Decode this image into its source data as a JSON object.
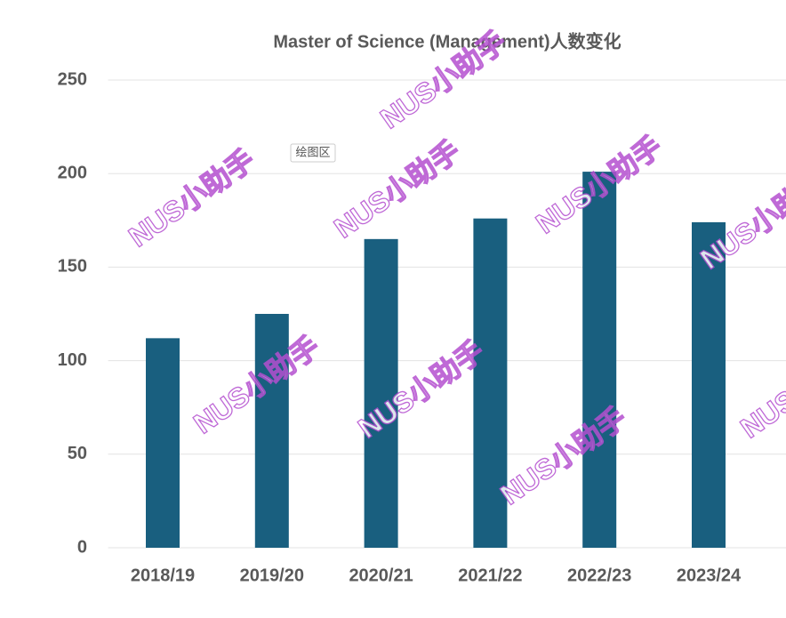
{
  "chart_data": {
    "type": "bar",
    "title": "Master of Science (Management)人数变化",
    "categories": [
      "2018/19",
      "2019/20",
      "2020/21",
      "2021/22",
      "2022/23",
      "2023/24"
    ],
    "values": [
      112,
      125,
      165,
      176,
      201,
      174
    ],
    "color": "#195f7f",
    "ylim": [
      0,
      250
    ],
    "yticks": [
      0,
      50,
      100,
      150,
      200,
      250
    ],
    "grid": true
  },
  "watermark": "NUS小助手",
  "tooltip": "绘图区"
}
